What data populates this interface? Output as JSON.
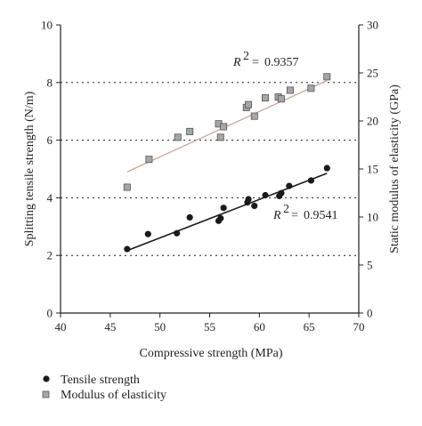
{
  "chart_data": {
    "type": "scatter",
    "xlabel": "Compressive strength (MPa)",
    "ylabel": "Splitting tensile strength (N/m)",
    "y2label": "Static modulus of elasticity (GPa)",
    "xlim": [
      40,
      70
    ],
    "ylim": [
      0,
      10
    ],
    "y2lim": [
      0,
      30
    ],
    "xticks": [
      40,
      45,
      50,
      55,
      60,
      65,
      70
    ],
    "yticks": [
      0,
      2,
      4,
      6,
      8,
      10
    ],
    "y2ticks": [
      0,
      5,
      10,
      15,
      20,
      25,
      30
    ],
    "grid_y": [
      2,
      4,
      6,
      8
    ],
    "legend_position": "bottom-left",
    "series": [
      {
        "name": "Tensile strength",
        "axis": "left",
        "marker": "circle",
        "color": "#1a1a1a",
        "points": [
          [
            46.7,
            2.22
          ],
          [
            48.8,
            2.74
          ],
          [
            51.7,
            2.77
          ],
          [
            53.0,
            3.32
          ],
          [
            55.9,
            3.2
          ],
          [
            56.1,
            3.29
          ],
          [
            56.4,
            3.65
          ],
          [
            58.8,
            3.84
          ],
          [
            58.9,
            3.95
          ],
          [
            59.5,
            3.72
          ],
          [
            60.6,
            4.09
          ],
          [
            62.0,
            4.06
          ],
          [
            62.2,
            4.16
          ],
          [
            63.0,
            4.41
          ],
          [
            65.2,
            4.6
          ],
          [
            66.8,
            5.03
          ]
        ],
        "trendline": {
          "x": [
            46.7,
            66.8
          ],
          "y": [
            2.17,
            4.85
          ]
        },
        "r2_label": "0.9541"
      },
      {
        "name": "Modulus of elasticity",
        "axis": "right",
        "marker": "square",
        "color": "#a6a6a6",
        "points": [
          [
            46.7,
            13.1
          ],
          [
            48.9,
            16.0
          ],
          [
            51.8,
            18.3
          ],
          [
            53.0,
            18.9
          ],
          [
            55.9,
            19.7
          ],
          [
            56.1,
            18.3
          ],
          [
            56.4,
            19.4
          ],
          [
            58.7,
            21.4
          ],
          [
            58.9,
            21.7
          ],
          [
            59.5,
            20.5
          ],
          [
            60.6,
            22.4
          ],
          [
            61.9,
            22.5
          ],
          [
            62.2,
            22.3
          ],
          [
            63.1,
            23.2
          ],
          [
            65.2,
            23.4
          ],
          [
            66.8,
            24.6
          ]
        ],
        "trendline": {
          "x": [
            46.7,
            66.8
          ],
          "y": [
            14.7,
            24.2
          ]
        },
        "r2_label": "0.9357"
      }
    ]
  }
}
